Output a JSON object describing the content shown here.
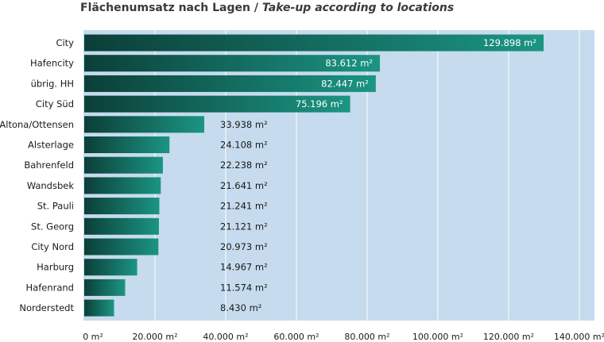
{
  "title": {
    "de": "Flächenumsatz nach Lagen",
    "sep": " / ",
    "en": "Take-up according to locations"
  },
  "colors": {
    "background": "#c6dbed",
    "bar_dark": "#0b3f38",
    "bar_light": "#1b9583",
    "grid": "#ffffff",
    "text": "#1a1a1a"
  },
  "chart_data": {
    "type": "bar",
    "orientation": "horizontal",
    "title": "Flächenumsatz nach Lagen / Take-up according to locations",
    "categories": [
      "City",
      "Hafencity",
      "übrig. HH",
      "City Süd",
      "Altona/Ottensen",
      "Alsterlage",
      "Bahrenfeld",
      "Wandsbek",
      "St. Pauli",
      "St. Georg",
      "City Nord",
      "Harburg",
      "Hafenrand",
      "Norderstedt"
    ],
    "values": [
      129898,
      83612,
      82447,
      75196,
      33938,
      24108,
      22238,
      21641,
      21241,
      21121,
      20973,
      14967,
      11574,
      8430
    ],
    "value_labels": [
      "129.898 m²",
      "83.612 m²",
      "82.447 m²",
      "75.196 m²",
      "33.938 m²",
      "24.108 m²",
      "22.238 m²",
      "21.641 m²",
      "21.241 m²",
      "21.121 m²",
      "20.973 m²",
      "14.967 m²",
      "11.574 m²",
      "8.430 m²"
    ],
    "xlim": [
      0,
      140000
    ],
    "xticks": [
      0,
      20000,
      40000,
      60000,
      80000,
      100000,
      120000,
      140000
    ],
    "xtick_labels": [
      "0 m²",
      "20.000 m²",
      "40.000 m²",
      "60.000 m²",
      "80.000 m²",
      "100.000 m²",
      "120.000 m²",
      "140.000 m²"
    ],
    "grid": true,
    "legend": "none"
  }
}
